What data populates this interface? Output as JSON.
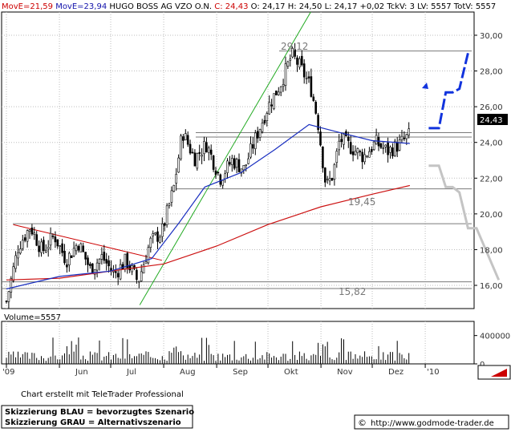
{
  "header": {
    "ma1": "MovE=21,59",
    "ma2": "MovE=23,94",
    "name": "HUGO BOSS AG VZO O.N.",
    "close": "C: 24,43",
    "rest": "O: 24,17  H: 24,50  L: 24,17  +0,02  TckV: 3  LV: 5557  TotV: 5557"
  },
  "volume_label": "Volume=5557",
  "footer": {
    "credit": "Chart erstellt mit TeleTrader Professional",
    "legend_blue": "Skizzierung BLAU = bevorzugtes Szenario",
    "legend_grey": "Skizzierung GRAU = Alternativszenario",
    "copyright_symbol": "©",
    "url": "http://www.godmode-trader.de"
  },
  "colors": {
    "ma_short": "#1a2fc0",
    "ma_long": "#cc1111",
    "header_red": "#cc0000",
    "header_blue": "#1111aa",
    "trend_green": "#22aa22",
    "trend_red": "#cc0000",
    "scenario_blue": "#1133dd",
    "scenario_grey": "#c4c4c4",
    "price_tag_bg": "#000000"
  },
  "chart_data": {
    "type": "candlestick",
    "title": "HUGO BOSS AG VZO O.N.",
    "x_ticks": [
      "'09",
      "Jun",
      "Jul",
      "Aug",
      "Sep",
      "Okt",
      "Nov",
      "Dez",
      "'10"
    ],
    "y_ticks": [
      "16,00",
      "18,00",
      "20,00",
      "22,00",
      "24,00",
      "26,00",
      "28,00",
      "30,00"
    ],
    "ylim": [
      14.7,
      31.3
    ],
    "last_price": "24,43",
    "level_labels": [
      "29,12",
      "19,45",
      "15,82"
    ],
    "levels": [
      29.12,
      24.55,
      24.3,
      21.4,
      19.45,
      16.2,
      15.82
    ],
    "close_path": [
      {
        "date": "2009-05-01",
        "close": 15.1
      },
      {
        "date": "2009-05-08",
        "close": 18.2
      },
      {
        "date": "2009-05-15",
        "close": 19.3
      },
      {
        "date": "2009-05-22",
        "close": 17.9
      },
      {
        "date": "2009-05-29",
        "close": 18.8
      },
      {
        "date": "2009-06-05",
        "close": 17.4
      },
      {
        "date": "2009-06-12",
        "close": 18.4
      },
      {
        "date": "2009-06-19",
        "close": 16.9
      },
      {
        "date": "2009-06-26",
        "close": 17.6
      },
      {
        "date": "2009-07-03",
        "close": 16.6
      },
      {
        "date": "2009-07-10",
        "close": 17.4
      },
      {
        "date": "2009-07-17",
        "close": 16.2
      },
      {
        "date": "2009-07-24",
        "close": 18.4
      },
      {
        "date": "2009-07-31",
        "close": 19.0
      },
      {
        "date": "2009-08-07",
        "close": 21.5
      },
      {
        "date": "2009-08-12",
        "close": 24.6
      },
      {
        "date": "2009-08-19",
        "close": 23.1
      },
      {
        "date": "2009-08-26",
        "close": 23.9
      },
      {
        "date": "2009-09-03",
        "close": 22.0
      },
      {
        "date": "2009-09-10",
        "close": 23.0
      },
      {
        "date": "2009-09-17",
        "close": 22.5
      },
      {
        "date": "2009-09-24",
        "close": 24.3
      },
      {
        "date": "2009-10-01",
        "close": 26.0
      },
      {
        "date": "2009-10-08",
        "close": 27.2
      },
      {
        "date": "2009-10-15",
        "close": 28.9
      },
      {
        "date": "2009-10-20",
        "close": 28.2
      },
      {
        "date": "2009-10-26",
        "close": 27.1
      },
      {
        "date": "2009-10-30",
        "close": 25.3
      },
      {
        "date": "2009-11-04",
        "close": 21.5
      },
      {
        "date": "2009-11-08",
        "close": 22.2
      },
      {
        "date": "2009-11-12",
        "close": 24.2
      },
      {
        "date": "2009-11-19",
        "close": 23.7
      },
      {
        "date": "2009-11-26",
        "close": 23.2
      },
      {
        "date": "2009-12-03",
        "close": 24.0
      },
      {
        "date": "2009-12-10",
        "close": 23.5
      },
      {
        "date": "2009-12-17",
        "close": 23.9
      },
      {
        "date": "2009-12-23",
        "close": 24.43
      }
    ],
    "series": [
      {
        "name": "MovE=21,59",
        "values": [
          {
            "date": "2009-05-01",
            "value": 16.3
          },
          {
            "date": "2009-06-01",
            "value": 16.4
          },
          {
            "date": "2009-07-01",
            "value": 16.8
          },
          {
            "date": "2009-08-01",
            "value": 17.2
          },
          {
            "date": "2009-09-01",
            "value": 18.2
          },
          {
            "date": "2009-10-01",
            "value": 19.4
          },
          {
            "date": "2009-11-01",
            "value": 20.4
          },
          {
            "date": "2009-12-01",
            "value": 21.1
          },
          {
            "date": "2009-12-23",
            "value": 21.59
          }
        ]
      },
      {
        "name": "MovE=23,94",
        "values": [
          {
            "date": "2009-05-01",
            "value": 15.8
          },
          {
            "date": "2009-06-01",
            "value": 16.5
          },
          {
            "date": "2009-07-01",
            "value": 16.8
          },
          {
            "date": "2009-07-25",
            "value": 17.5
          },
          {
            "date": "2009-08-10",
            "value": 19.5
          },
          {
            "date": "2009-08-25",
            "value": 21.5
          },
          {
            "date": "2009-09-15",
            "value": 22.3
          },
          {
            "date": "2009-10-05",
            "value": 23.6
          },
          {
            "date": "2009-10-25",
            "value": 25.0
          },
          {
            "date": "2009-11-10",
            "value": 24.6
          },
          {
            "date": "2009-12-01",
            "value": 24.1
          },
          {
            "date": "2009-12-23",
            "value": 23.94
          }
        ]
      }
    ],
    "volume_ticks": [
      "400000",
      "0"
    ],
    "volume_last": 5557
  }
}
